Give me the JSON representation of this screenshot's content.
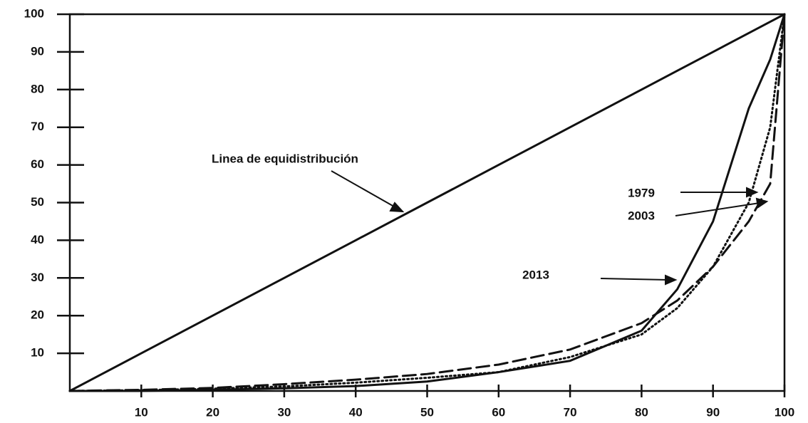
{
  "chart_data": {
    "type": "line",
    "x": [
      0,
      10,
      20,
      30,
      40,
      50,
      60,
      70,
      80,
      85,
      90,
      95,
      98,
      100
    ],
    "xlim": [
      0,
      100
    ],
    "ylim": [
      0,
      100
    ],
    "xticks": [
      10,
      20,
      30,
      40,
      50,
      60,
      70,
      80,
      90,
      100
    ],
    "yticks": [
      10,
      20,
      30,
      40,
      50,
      60,
      70,
      80,
      90,
      100
    ],
    "series": [
      {
        "name": "Linea de equidistribución",
        "color": "#111111",
        "line_style": "solid",
        "values": [
          0,
          10,
          20,
          30,
          40,
          50,
          60,
          70,
          80,
          85,
          90,
          95,
          98,
          100
        ]
      },
      {
        "name": "1979",
        "color": "#111111",
        "line_style": "dotted",
        "values": [
          0,
          0.2,
          0.6,
          1.2,
          2.2,
          3.5,
          5,
          9,
          15,
          22,
          33,
          50,
          70,
          100
        ]
      },
      {
        "name": "2003",
        "color": "#111111",
        "line_style": "dashed",
        "values": [
          0,
          0.3,
          0.8,
          1.8,
          3,
          4.5,
          7,
          11,
          18,
          24,
          33,
          45,
          55,
          100
        ]
      },
      {
        "name": "2013",
        "color": "#111111",
        "line_style": "solid",
        "values": [
          0,
          0,
          0.3,
          0.7,
          1.3,
          2.5,
          5,
          8,
          16,
          27,
          45,
          75,
          88,
          100
        ]
      }
    ]
  }
}
